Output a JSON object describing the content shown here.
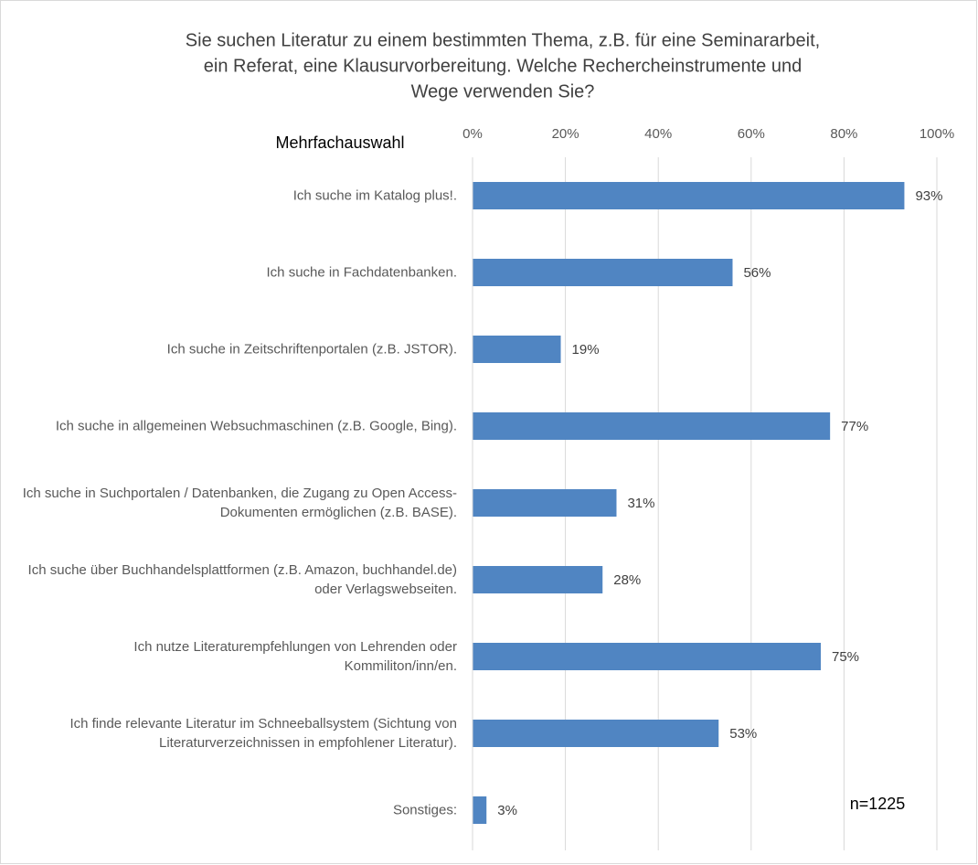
{
  "chart_data": {
    "type": "hbar",
    "title": [
      "Sie suchen Literatur zu einem bestimmten Thema, z.B. für eine Seminararbeit,",
      "ein Referat, eine Klausurvorbereitung. Welche Rechercheinstrumente und",
      "Wege verwenden Sie?"
    ],
    "subtitle": "Mehrfachauswahl",
    "annotation": "n=1225",
    "categories": [
      "Ich suche im Katalog plus!.",
      "Ich suche in Fachdatenbanken.",
      "Ich suche in Zeitschriftenportalen (z.B. JSTOR).",
      "Ich suche in allgemeinen Websuchmaschinen (z.B. Google, Bing).",
      "Ich suche in Suchportalen / Datenbanken, die Zugang zu Open Access-Dokumenten ermöglichen (z.B. BASE).",
      "Ich suche über Buchhandelsplattformen (z.B. Amazon, buchhandel.de) oder Verlagswebseiten.",
      "Ich nutze Literaturempfehlungen von Lehrenden oder Kommiliton/inn/en.",
      "Ich finde relevante Literatur im Schneeballsystem (Sichtung von Literaturverzeichnissen in empfohlener Literatur).",
      "Sonstiges:"
    ],
    "values": [
      93,
      56,
      19,
      77,
      31,
      28,
      75,
      53,
      3
    ],
    "value_labels": [
      "93%",
      "56%",
      "19%",
      "77%",
      "31%",
      "28%",
      "75%",
      "53%",
      "3%"
    ],
    "color": "#5085c2",
    "xlim": [
      0,
      100
    ],
    "xticks": [
      {
        "value": 0,
        "label": "0%"
      },
      {
        "value": 20,
        "label": "20%"
      },
      {
        "value": 40,
        "label": "40%"
      },
      {
        "value": 60,
        "label": "60%"
      },
      {
        "value": 80,
        "label": "80%"
      },
      {
        "value": 100,
        "label": "100%"
      }
    ],
    "grid": true
  }
}
